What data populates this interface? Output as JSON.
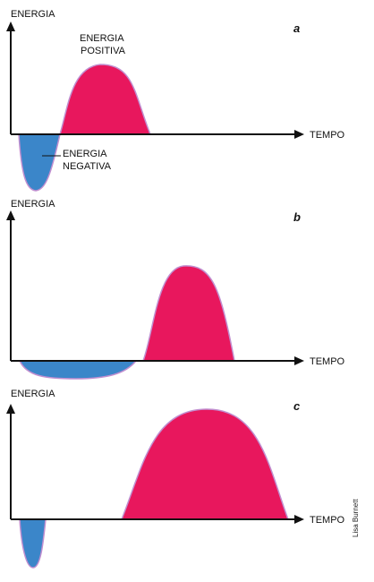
{
  "axis_labels": {
    "y": "ENERGIA",
    "x": "TEMPO"
  },
  "panels": [
    {
      "letter": "a",
      "positive_label": [
        "ENERGIA",
        "POSITIVA"
      ],
      "negative_label": [
        "ENERGIA",
        "NEGATIVA"
      ]
    },
    {
      "letter": "b"
    },
    {
      "letter": "c"
    }
  ],
  "credit": "Lisa Burnett",
  "colors": {
    "positive": "#e8175d",
    "negative": "#3b86c9",
    "pulse_outline": "#c18fd0",
    "axis": "#111111"
  }
}
